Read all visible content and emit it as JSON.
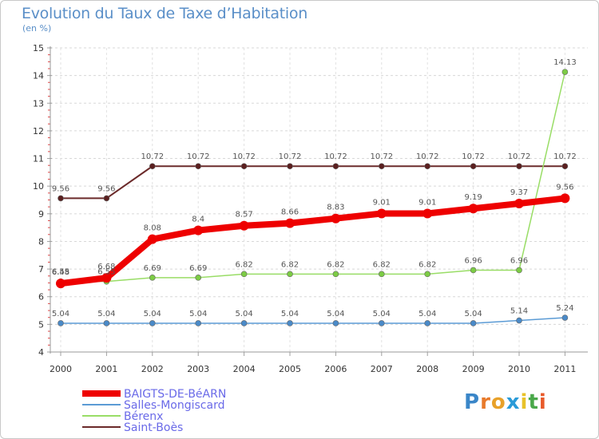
{
  "header": {
    "title": "Evolution du Taux de Taxe d’Habitation",
    "subtitle": "(en %)"
  },
  "logo": {
    "text": "Proxiti",
    "letters": [
      "P",
      "r",
      "o",
      "x",
      "i",
      "t",
      "i"
    ],
    "colors": [
      "#3a86c8",
      "#e87a2a",
      "#e8a12a",
      "#2a9bd8",
      "#e8c22a",
      "#4aa84a",
      "#e85a2a"
    ]
  },
  "chart_data": {
    "type": "line",
    "title": "Evolution du Taux de Taxe d’Habitation",
    "ylabel": "(en %)",
    "xlabel": "",
    "ylim": [
      4,
      15
    ],
    "yticks": [
      4,
      5,
      6,
      7,
      8,
      9,
      10,
      11,
      12,
      13,
      14,
      15
    ],
    "categories": [
      "2000",
      "2001",
      "2002",
      "2003",
      "2004",
      "2005",
      "2006",
      "2007",
      "2008",
      "2009",
      "2010",
      "2011"
    ],
    "grid": "dashed",
    "legend_position": "bottom-left",
    "series": [
      {
        "name": "Saint-Boès",
        "color": "#6b2a2a",
        "point_color": "#5a1f1f",
        "width": 2,
        "values": [
          9.56,
          9.56,
          10.72,
          10.72,
          10.72,
          10.72,
          10.72,
          10.72,
          10.72,
          10.72,
          10.72,
          10.72
        ],
        "labels": [
          "9.56",
          "9.56",
          "10.72",
          "10.72",
          "10.72",
          "10.72",
          "10.72",
          "10.72",
          "10.72",
          "10.72",
          "10.72",
          "10.72"
        ]
      },
      {
        "name": "Bérenx",
        "color": "#99dd66",
        "point_color": "#7ccc44",
        "width": 1.5,
        "values": [
          6.55,
          6.55,
          6.69,
          6.69,
          6.82,
          6.82,
          6.82,
          6.82,
          6.82,
          6.96,
          6.96,
          14.13
        ],
        "labels": [
          "6.55",
          "6.55",
          "6.69",
          "6.69",
          "6.82",
          "6.82",
          "6.82",
          "6.82",
          "6.82",
          "6.96",
          "6.96",
          "14.13"
        ]
      },
      {
        "name": "Salles-Mongiscard",
        "color": "#5b9bd5",
        "point_color": "#4a8ac8",
        "width": 1.5,
        "values": [
          5.04,
          5.04,
          5.04,
          5.04,
          5.04,
          5.04,
          5.04,
          5.04,
          5.04,
          5.04,
          5.14,
          5.24
        ],
        "labels": [
          "5.04",
          "5.04",
          "5.04",
          "5.04",
          "5.04",
          "5.04",
          "5.04",
          "5.04",
          "5.04",
          "5.04",
          "5.14",
          "5.24"
        ]
      },
      {
        "name": "BAIGTS-DE-BéARN",
        "color": "#ee0000",
        "point_color": "#ee0000",
        "width": 8,
        "values": [
          6.48,
          6.68,
          8.08,
          8.4,
          8.57,
          8.66,
          8.83,
          9.01,
          9.01,
          9.19,
          9.37,
          9.56
        ],
        "labels": [
          "6.48",
          "6.68",
          "8.08",
          "8.4",
          "8.57",
          "8.66",
          "8.83",
          "9.01",
          "9.01",
          "9.19",
          "9.37",
          "9.56"
        ]
      }
    ],
    "legend": [
      "BAIGTS-DE-BéARN",
      "Salles-Mongiscard",
      "Bérenx",
      "Saint-Boès"
    ]
  }
}
